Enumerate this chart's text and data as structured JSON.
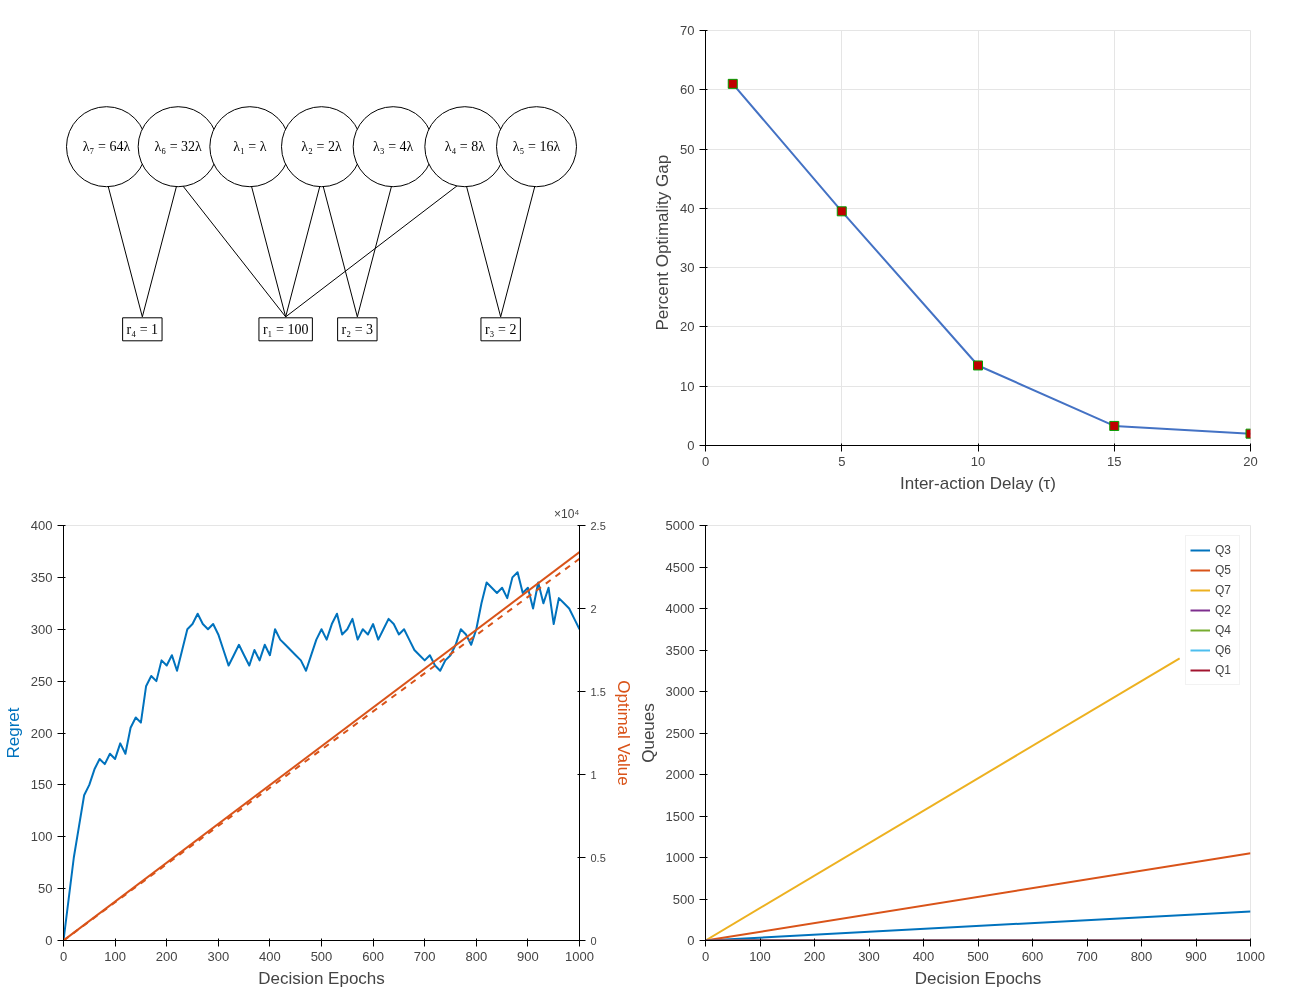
{
  "chart_data": [
    {
      "type": "other",
      "categories": [
        "λ₇ = 64λ",
        "λ₆ = 32λ",
        "λ₁ = λ",
        "λ₂ = 2λ",
        "λ₃ = 4λ",
        "λ₄ = 8λ",
        "λ₅ = 16λ"
      ],
      "annotations": [
        "r₄ = 1",
        "r₁ = 100",
        "r₂ = 3",
        "r₃ = 2"
      ]
    },
    {
      "type": "line",
      "xlabel": "Inter-action Delay (τ)",
      "ylabel": "Percent  Optimality  Gap",
      "xlim": [
        0,
        20
      ],
      "xticks": [
        0,
        5,
        10,
        15,
        20
      ],
      "ylim": [
        0,
        70
      ],
      "yticks": [
        0,
        10,
        20,
        30,
        40,
        50,
        60,
        70
      ],
      "grid": true,
      "marker": "square",
      "legend": false,
      "series": [
        {
          "color": "#4472c4",
          "colors": [
            "#c00000",
            "#c00000",
            "#c00000",
            "#c00000",
            "#c00000"
          ],
          "x": [
            1,
            5,
            10,
            15,
            20
          ],
          "values": [
            61,
            39.5,
            13.5,
            3.3,
            2
          ]
        }
      ]
    },
    {
      "type": "line",
      "xlabel": "Decision Epochs",
      "ylabel": "Regret",
      "y2label": "Optimal Value",
      "xlim": [
        0,
        1000
      ],
      "xticks": [
        0,
        100,
        200,
        300,
        400,
        500,
        600,
        700,
        800,
        900,
        1000
      ],
      "ylim": [
        0,
        400
      ],
      "yticks": [
        0,
        50,
        100,
        150,
        200,
        250,
        300,
        350,
        400
      ],
      "y2lim": [
        0,
        2.5
      ],
      "y2ticks": [
        0,
        0.5,
        1,
        1.5,
        2,
        2.5
      ],
      "grid": false,
      "legend": false,
      "annotations": [
        "×10⁴"
      ],
      "series": [
        {
          "color": "#0072bd",
          "x": [
            0,
            10,
            20,
            30,
            40,
            50,
            60,
            70,
            80,
            90,
            100,
            110,
            120,
            130,
            140,
            150,
            160,
            170,
            180,
            190,
            200,
            210,
            220,
            230,
            240,
            250,
            260,
            270,
            280,
            290,
            300,
            310,
            320,
            330,
            340,
            350,
            360,
            370,
            380,
            390,
            400,
            410,
            420,
            430,
            440,
            450,
            460,
            470,
            480,
            490,
            500,
            510,
            520,
            530,
            540,
            550,
            560,
            570,
            580,
            590,
            600,
            610,
            620,
            630,
            640,
            650,
            660,
            670,
            680,
            690,
            700,
            710,
            720,
            730,
            740,
            750,
            760,
            770,
            780,
            790,
            800,
            810,
            820,
            830,
            840,
            850,
            860,
            870,
            880,
            890,
            900,
            910,
            920,
            930,
            940,
            950,
            960,
            970,
            980,
            990,
            1000
          ],
          "values": [
            0,
            40,
            80,
            110,
            140,
            150,
            165,
            175,
            170,
            180,
            175,
            190,
            180,
            205,
            215,
            210,
            245,
            255,
            250,
            270,
            265,
            275,
            260,
            280,
            300,
            305,
            315,
            305,
            300,
            305,
            295,
            280,
            265,
            275,
            285,
            275,
            265,
            280,
            270,
            285,
            275,
            300,
            290,
            285,
            280,
            275,
            270,
            260,
            275,
            290,
            300,
            290,
            305,
            315,
            295,
            300,
            310,
            290,
            300,
            295,
            305,
            290,
            300,
            310,
            305,
            295,
            300,
            290,
            280,
            275,
            270,
            275,
            265,
            260,
            270,
            275,
            285,
            300,
            295,
            285,
            300,
            325,
            345,
            340,
            335,
            340,
            330,
            350,
            355,
            335,
            340,
            320,
            345,
            325,
            340,
            305,
            330,
            325,
            320,
            310,
            300
          ]
        },
        {
          "color": "#d95319",
          "axis": "y2",
          "line_style": "solid",
          "x": [
            0,
            1000
          ],
          "values": [
            0,
            2.34
          ]
        },
        {
          "color": "#d95319",
          "axis": "y2",
          "line_style": "dashed",
          "x": [
            0,
            1000
          ],
          "values": [
            0,
            2.3
          ]
        }
      ]
    },
    {
      "type": "line",
      "xlabel": "Decision Epochs",
      "ylabel": "Queues",
      "xlim": [
        0,
        1000
      ],
      "xticks": [
        0,
        100,
        200,
        300,
        400,
        500,
        600,
        700,
        800,
        900,
        1000
      ],
      "ylim": [
        0,
        5000
      ],
      "yticks": [
        0,
        500,
        1000,
        1500,
        2000,
        2500,
        3000,
        3500,
        4000,
        4500,
        5000
      ],
      "grid": false,
      "legend": "top right",
      "series": [
        {
          "name": "Q3",
          "color": "#0072bd",
          "x": [
            0,
            1000
          ],
          "values": [
            0,
            350
          ]
        },
        {
          "name": "Q5",
          "color": "#d95319",
          "x": [
            0,
            1000
          ],
          "values": [
            0,
            1050
          ]
        },
        {
          "name": "Q7",
          "color": "#edb120",
          "x": [
            0,
            870
          ],
          "values": [
            0,
            3400
          ]
        },
        {
          "name": "Q2",
          "color": "#7e2f8e",
          "values": [
            null,
            null
          ]
        },
        {
          "name": "Q4",
          "color": "#77ac30",
          "values": [
            null,
            null
          ]
        },
        {
          "name": "Q6",
          "color": "#4dbeee",
          "values": [
            null,
            null
          ]
        },
        {
          "name": "Q1",
          "color": "#a2142f",
          "values": [
            null,
            null
          ]
        }
      ]
    }
  ]
}
